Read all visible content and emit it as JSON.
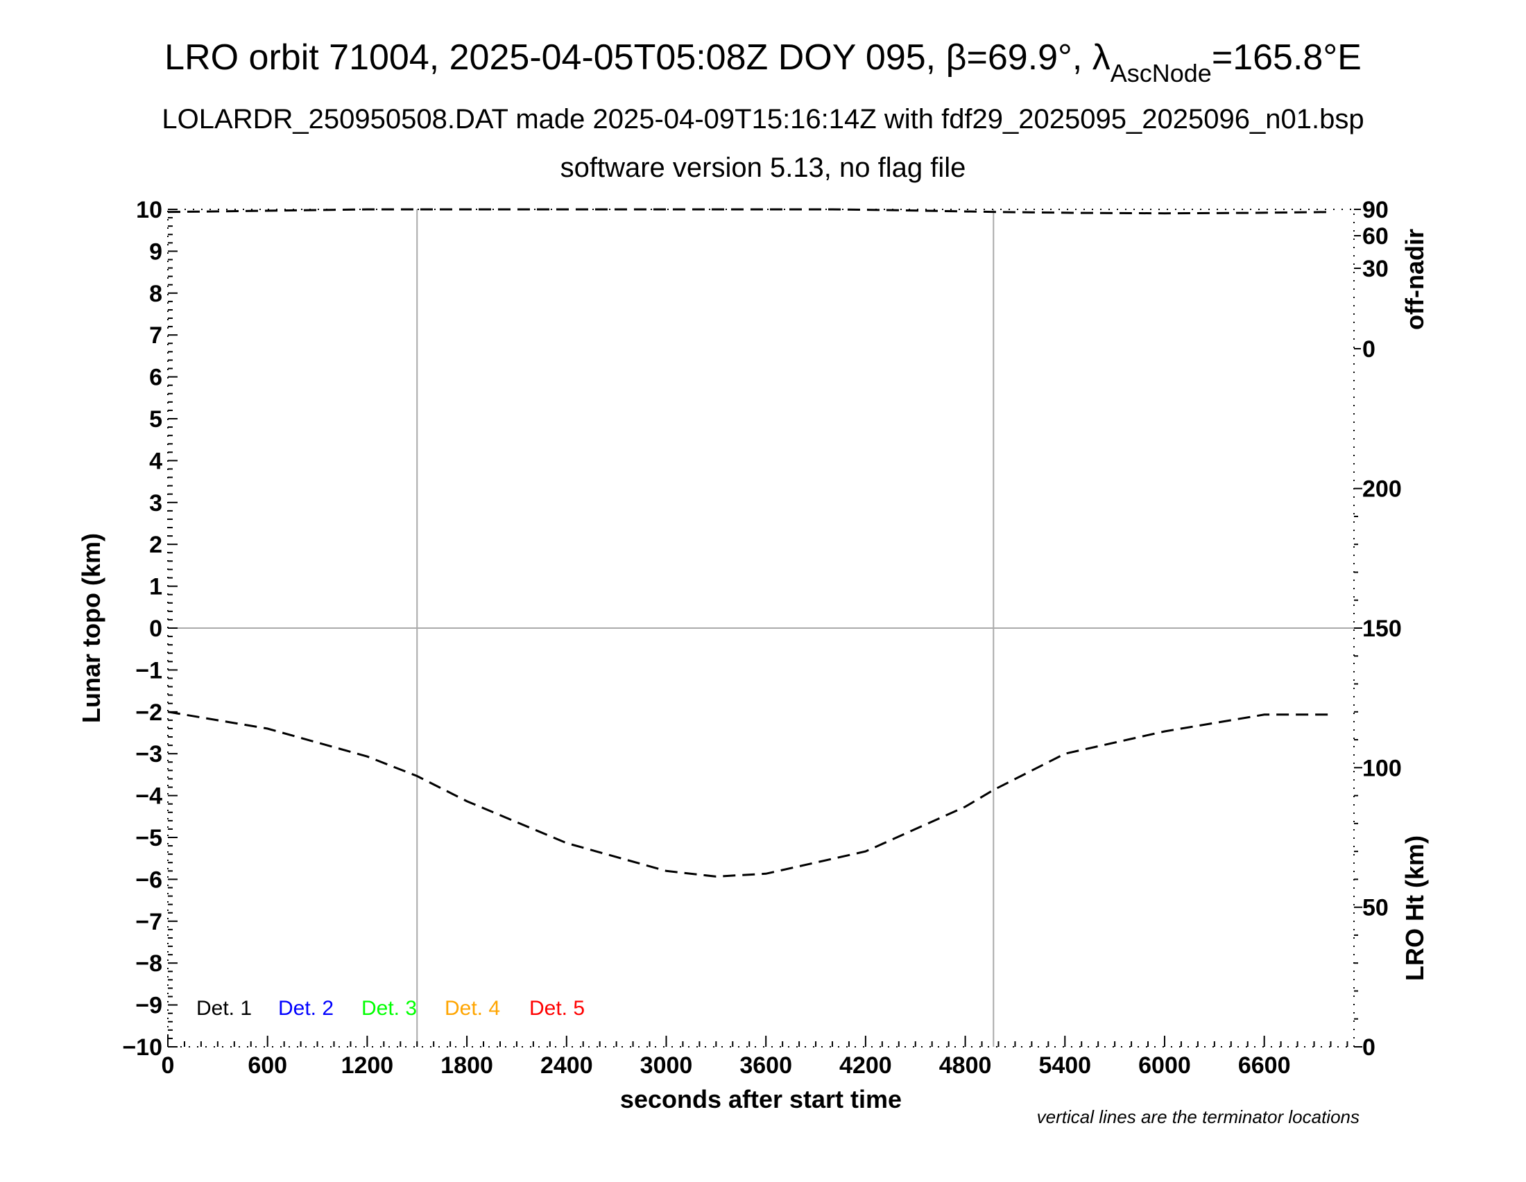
{
  "title": {
    "prefix": "LRO orbit 71004, 2025-04-05T05:08Z DOY 095, β=69.9°, λ",
    "subscript": "AscNode",
    "suffix": "=165.8°E"
  },
  "subtitle": "LOLARDR_250950508.DAT made 2025-04-09T15:16:14Z with fdf29_2025095_2025096_n01.bsp",
  "subtitle2": "software version 5.13, no flag file",
  "footnote": "vertical lines are the terminator locations",
  "chart_data": {
    "type": "line",
    "xlabel": "seconds after start time",
    "xlim": [
      0,
      7140
    ],
    "xticks": [
      0,
      600,
      1200,
      1800,
      2400,
      3000,
      3600,
      4200,
      4800,
      5400,
      6000,
      6600
    ],
    "left_axis": {
      "label": "Lunar topo (km)",
      "ylim": [
        -10,
        10
      ],
      "ticks": [
        10,
        9,
        8,
        7,
        6,
        5,
        4,
        3,
        2,
        1,
        0,
        -1,
        -2,
        -3,
        -4,
        -5,
        -6,
        -7,
        -8,
        -9,
        -10
      ]
    },
    "right_axis_offnadir": {
      "label": "off-nadir",
      "ticks": [
        90,
        60,
        30,
        0
      ]
    },
    "right_axis_height": {
      "label": "LRO Ht (km)",
      "ylim": [
        0,
        300
      ],
      "ticks": [
        200,
        150,
        100,
        50,
        0
      ]
    },
    "terminator_lines_x": [
      1500,
      4970
    ],
    "zero_line_y": 0,
    "legend": [
      "Det. 1",
      "Det. 2",
      "Det. 3",
      "Det. 4",
      "Det. 5"
    ],
    "legend_colors": [
      "#000000",
      "#0000ff",
      "#00ff00",
      "#ffa500",
      "#ff0000"
    ],
    "legend_placement": "bottom-left",
    "series": [
      {
        "axis": "LRO Ht (km)",
        "style": "dashed",
        "x": [
          0,
          600,
          1200,
          1500,
          1800,
          2400,
          3000,
          3300,
          3600,
          4200,
          4800,
          4970,
          5400,
          6000,
          6600,
          7000
        ],
        "values": [
          120,
          114,
          104,
          97,
          88,
          73,
          63,
          61,
          62,
          70,
          86,
          92,
          105,
          113,
          119,
          119
        ]
      },
      {
        "axis": "off-nadir",
        "style": "dashed",
        "x": [
          0,
          800,
          1200,
          4000,
          4400,
          5000,
          5500,
          6000,
          6500,
          7000
        ],
        "values": [
          87,
          89,
          90,
          90,
          89,
          87,
          86,
          85.5,
          86,
          87
        ]
      }
    ]
  }
}
